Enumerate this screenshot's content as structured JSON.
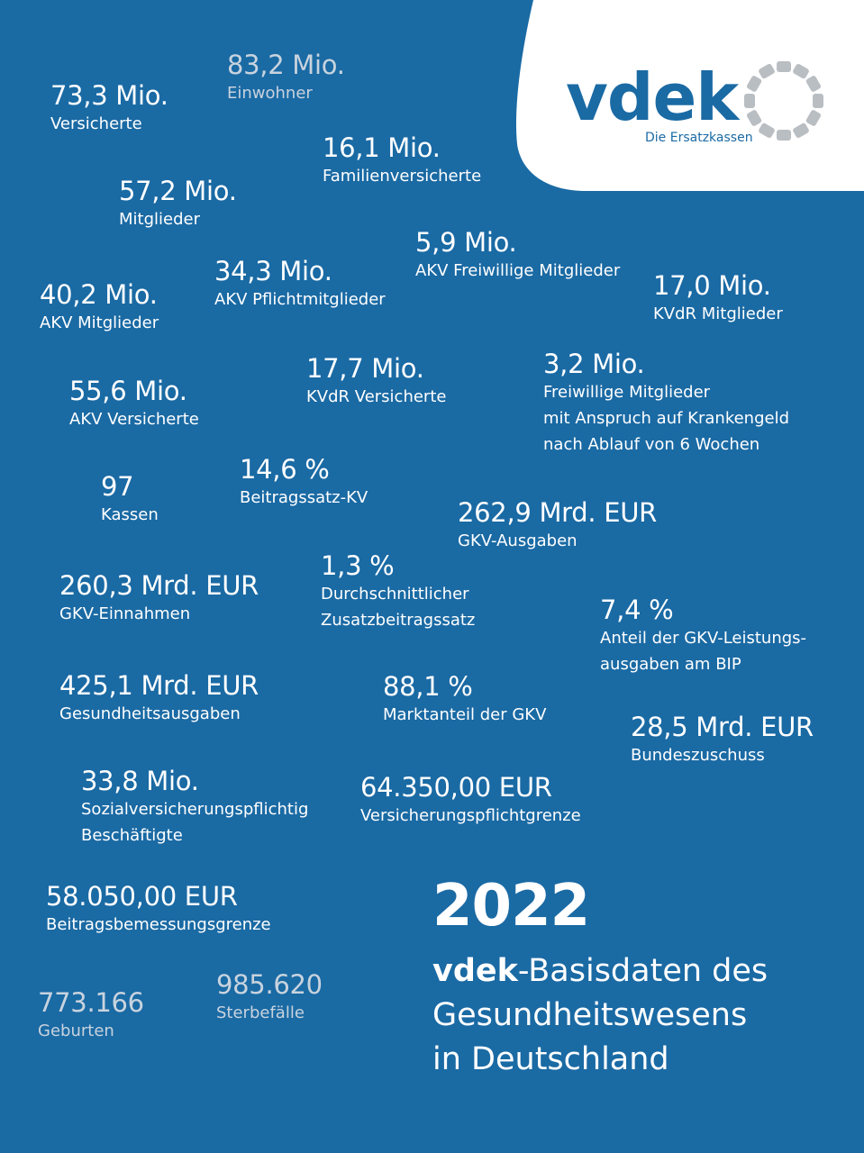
{
  "logo": {
    "wordmark": "vdek",
    "tagline": "Die Ersatzkassen",
    "ring_icon": "vdek-ring-logo-icon",
    "colors": {
      "primary": "#1a6aa4",
      "ring": "#b9bec3",
      "panel": "#ffffff"
    }
  },
  "stats": [
    {
      "value": "73,3 Mio.",
      "label": [
        "Versicherte"
      ]
    },
    {
      "value": "83,2 Mio.",
      "label": [
        "Einwohner"
      ]
    },
    {
      "value": "16,1 Mio.",
      "label": [
        "Familienversicherte"
      ]
    },
    {
      "value": "57,2 Mio.",
      "label": [
        "Mitglieder"
      ]
    },
    {
      "value": "5,9 Mio.",
      "label": [
        "AKV Freiwillige Mitglieder"
      ]
    },
    {
      "value": "34,3 Mio.",
      "label": [
        "AKV Pflichtmitglieder"
      ]
    },
    {
      "value": "40,2 Mio.",
      "label": [
        "AKV Mitglieder"
      ]
    },
    {
      "value": "17,0 Mio.",
      "label": [
        "KVdR Mitglieder"
      ]
    },
    {
      "value": "17,7 Mio.",
      "label": [
        "KVdR Versicherte"
      ]
    },
    {
      "value": "3,2 Mio.",
      "label": [
        "Freiwillige Mitglieder",
        "mit Anspruch auf Krankengeld",
        "nach Ablauf von 6 Wochen"
      ]
    },
    {
      "value": "55,6 Mio.",
      "label": [
        "AKV Versicherte"
      ]
    },
    {
      "value": "97",
      "label": [
        "Kassen"
      ]
    },
    {
      "value": "14,6 %",
      "label": [
        "Beitragssatz-KV"
      ]
    },
    {
      "value": "262,9 Mrd. EUR",
      "label": [
        "GKV-Ausgaben"
      ]
    },
    {
      "value": "260,3 Mrd. EUR",
      "label": [
        "GKV-Einnahmen"
      ]
    },
    {
      "value": "1,3 %",
      "label": [
        "Durchschnittlicher",
        "Zusatzbeitragssatz"
      ]
    },
    {
      "value": "7,4 %",
      "label": [
        "Anteil der GKV-Leistungs-",
        "ausgaben am BIP"
      ]
    },
    {
      "value": "425,1 Mrd. EUR",
      "label": [
        "Gesundheitsausgaben"
      ]
    },
    {
      "value": "88,1 %",
      "label": [
        "Marktanteil der GKV"
      ]
    },
    {
      "value": "28,5 Mrd. EUR",
      "label": [
        "Bundeszuschuss"
      ]
    },
    {
      "value": "33,8 Mio.",
      "label": [
        "Sozialversicherungspflichtig",
        "Beschäftigte"
      ]
    },
    {
      "value": "64.350,00 EUR",
      "label": [
        "Versicherungspflichtgrenze"
      ]
    },
    {
      "value": "58.050,00 EUR",
      "label": [
        "Beitragsbemessungsgrenze"
      ]
    },
    {
      "value": "773.166",
      "label": [
        "Geburten"
      ]
    },
    {
      "value": "985.620",
      "label": [
        "Sterbefälle"
      ]
    }
  ],
  "title": {
    "year": "2022",
    "brand": "vdek",
    "line1_rest": "-Basisdaten des",
    "line2": "Gesundheitswesens",
    "line3": "in Deutschland"
  },
  "colors": {
    "background": "#1a6aa4",
    "text": "#ffffff",
    "muted_text": "#c8d3de"
  }
}
